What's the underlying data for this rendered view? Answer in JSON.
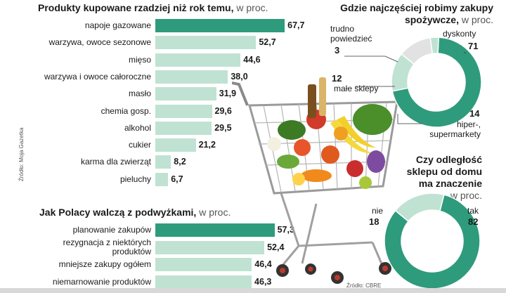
{
  "colors": {
    "accent": "#2e9b7c",
    "light": "#bfe2d3",
    "grey": "#e2e2e2"
  },
  "chart_data": [
    {
      "type": "bar",
      "title": "Produkty kupowane rzadziej niż rok temu,",
      "unit": "w proc.",
      "categories": [
        "napoje gazowane",
        "warzywa, owoce sezonowe",
        "mięso",
        "warzywa i owoce całoroczne",
        "masło",
        "chemia gosp.",
        "alkohol",
        "cukier",
        "karma dla zwierząt",
        "pieluchy"
      ],
      "values": [
        67.7,
        52.7,
        44.6,
        38.0,
        31.9,
        29.6,
        29.5,
        21.2,
        8.2,
        6.7
      ],
      "value_labels": [
        "67,7",
        "52,7",
        "44,6",
        "38,0",
        "31,9",
        "29,6",
        "29,5",
        "21,2",
        "8,2",
        "6,7"
      ]
    },
    {
      "type": "bar",
      "title": "Jak Polacy walczą z podwyżkami,",
      "unit": "w proc.",
      "categories": [
        "planowanie zakupów",
        "rezygnacja z niektórych produktów",
        "mniejsze zakupy ogółem",
        "niemarnowanie produktów"
      ],
      "values": [
        57.3,
        52.4,
        46.4,
        46.3
      ],
      "value_labels": [
        "57,3",
        "52,4",
        "46,4",
        "46,3"
      ]
    },
    {
      "type": "pie",
      "title": "Gdzie najczęściej robimy zakupy spożywcze,",
      "unit": "w proc.",
      "slices": [
        {
          "name": "dyskonty",
          "value": 71
        },
        {
          "name": "hiper-, supermarkety",
          "value": 14
        },
        {
          "name": "małe sklepy",
          "value": 12
        },
        {
          "name": "trudno powiedzieć",
          "value": 3
        }
      ]
    },
    {
      "type": "pie",
      "title": "Czy odległość sklepu od domu ma znaczenie",
      "unit": "w proc.",
      "slices": [
        {
          "name": "tak",
          "value": 82
        },
        {
          "name": "nie",
          "value": 18
        }
      ]
    }
  ],
  "text": {
    "bar1_title": "Produkty kupowane rzadziej niż rok temu,",
    "bar1_unit": "w proc.",
    "bar2_title": "Jak Polacy walczą z podwyżkami,",
    "bar2_unit": "w proc.",
    "pie1_title_l1": "Gdzie najczęściej robimy zakupy",
    "pie1_title_l2": "spożywcze,",
    "pie1_unit": "w proc.",
    "pie2_title_l1": "Czy odległość",
    "pie2_title_l2": "sklepu od domu",
    "pie2_title_l3": "ma znaczenie",
    "pie2_unit": "w proc.",
    "pie1_lbl_trudno_l1": "trudno",
    "pie1_lbl_trudno_l2": "powiedzieć",
    "pie1_num_trudno": "3",
    "pie1_lbl_dyskonty": "dyskonty",
    "pie1_num_dyskonty": "71",
    "pie1_num_male": "12",
    "pie1_lbl_male": "małe sklepy",
    "pie1_num_hiper": "14",
    "pie1_lbl_hiper_l1": "hiper-,",
    "pie1_lbl_hiper_l2": "supermarkety",
    "pie2_lbl_nie": "nie",
    "pie2_num_nie": "18",
    "pie2_lbl_tak": "tak",
    "pie2_num_tak": "82",
    "source_left": "Źródło: Moja Gazetka",
    "source_right": "Źródło: CBRE"
  }
}
